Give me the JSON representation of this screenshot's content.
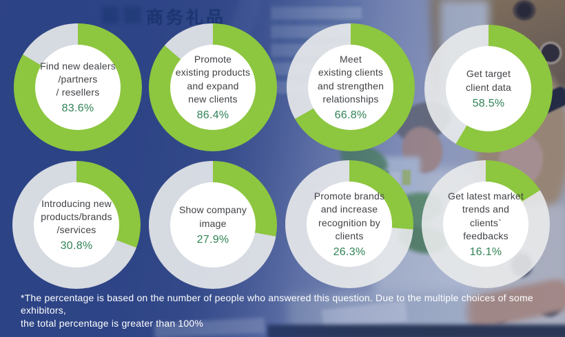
{
  "colors": {
    "green": "#8dc63f",
    "remainder": "rgba(232,234,235,0.9)",
    "percent_text": "#2f8255",
    "label_text": "#3f4145",
    "footnote_text": "#ffffff",
    "background_blue": "#2d4687"
  },
  "background": {
    "photo_text": "商务礼品"
  },
  "donuts": [
    {
      "label": "Find new dealers\n/partners\n/ resellers",
      "percent_label": "83.6%",
      "value": 83.6
    },
    {
      "label": "Promote\nexisting products\nand expand\nnew clients",
      "percent_label": "86.4%",
      "value": 86.4
    },
    {
      "label": "Meet\nexisting clients\nand strengthen\nrelationships",
      "percent_label": "66.8%",
      "value": 66.8
    },
    {
      "label": "Get target\nclient data",
      "percent_label": "58.5%",
      "value": 58.5
    },
    {
      "label": "Introducing new\nproducts/brands\n/services",
      "percent_label": "30.8%",
      "value": 30.8
    },
    {
      "label": "Show company\nimage",
      "percent_label": "27.9%",
      "value": 27.9
    },
    {
      "label": "Promote brands\nand increase\nrecognition by\nclients",
      "percent_label": "26.3%",
      "value": 26.3
    },
    {
      "label": "Get latest market\ntrends and\nclients`\nfeedbacks",
      "percent_label": "16.1%",
      "value": 16.1
    }
  ],
  "footnote": "*The percentage is based on the number of people who answered this question. Due to the multiple choices of some exhibitors,\nthe total percentage is greater than 100%",
  "chart_data": {
    "type": "pie",
    "style": "donut-multiples",
    "title": "",
    "unit": "%",
    "categories": [
      "Find new dealers /partners / resellers",
      "Promote existing products and expand new clients",
      "Meet existing clients and strengthen relationships",
      "Get target client data",
      "Introducing new products/brands /services",
      "Show company image",
      "Promote brands and increase recognition by clients",
      "Get latest market trends and clients` feedbacks"
    ],
    "values": [
      83.6,
      86.4,
      66.8,
      58.5,
      30.8,
      27.9,
      26.3,
      16.1
    ],
    "layout": "2 rows x 4 columns; each donut: green arc = value starting at 12 o'clock clockwise, light grey = remainder of 100%",
    "annotation": "*The percentage is based on the number of people who answered this question. Due to the multiple choices of some exhibitors, the total percentage is greater than 100%"
  }
}
